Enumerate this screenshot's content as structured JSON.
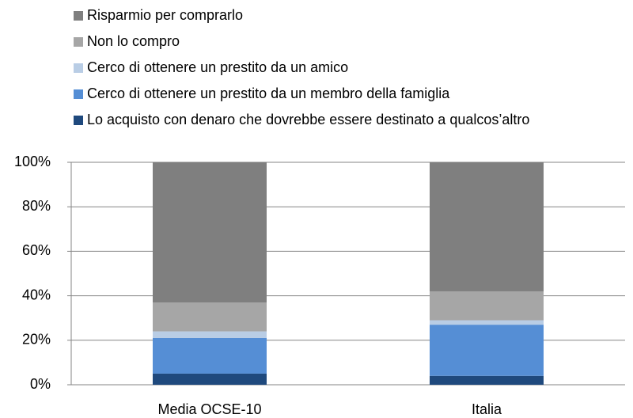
{
  "chart_data": {
    "type": "stacked_bar",
    "categories": [
      "Media OCSE-10",
      "Italia"
    ],
    "series": [
      {
        "name": "Risparmio per comprarlo",
        "color": "#7f7f7f",
        "values": [
          63,
          58
        ]
      },
      {
        "name": "Non lo compro",
        "color": "#a6a6a6",
        "values": [
          13,
          13
        ]
      },
      {
        "name": "Cerco di ottenere un prestito da un amico",
        "color": "#b9cde5",
        "values": [
          3,
          2
        ]
      },
      {
        "name": "Cerco di ottenere un prestito da un membro della famiglia",
        "color": "#558ed5",
        "values": [
          16,
          23
        ]
      },
      {
        "name": "Lo acquisto con denaro che dovrebbe essere destinato a qualcos’altro",
        "color": "#1f497d",
        "values": [
          5,
          4
        ]
      }
    ],
    "ylim": [
      0,
      100
    ],
    "yticks": [
      {
        "value": 0,
        "label": "0%"
      },
      {
        "value": 20,
        "label": "20%"
      },
      {
        "value": 40,
        "label": "40%"
      },
      {
        "value": 60,
        "label": "60%"
      },
      {
        "value": 80,
        "label": "80%"
      },
      {
        "value": 100,
        "label": "100%"
      }
    ],
    "grid": true
  }
}
